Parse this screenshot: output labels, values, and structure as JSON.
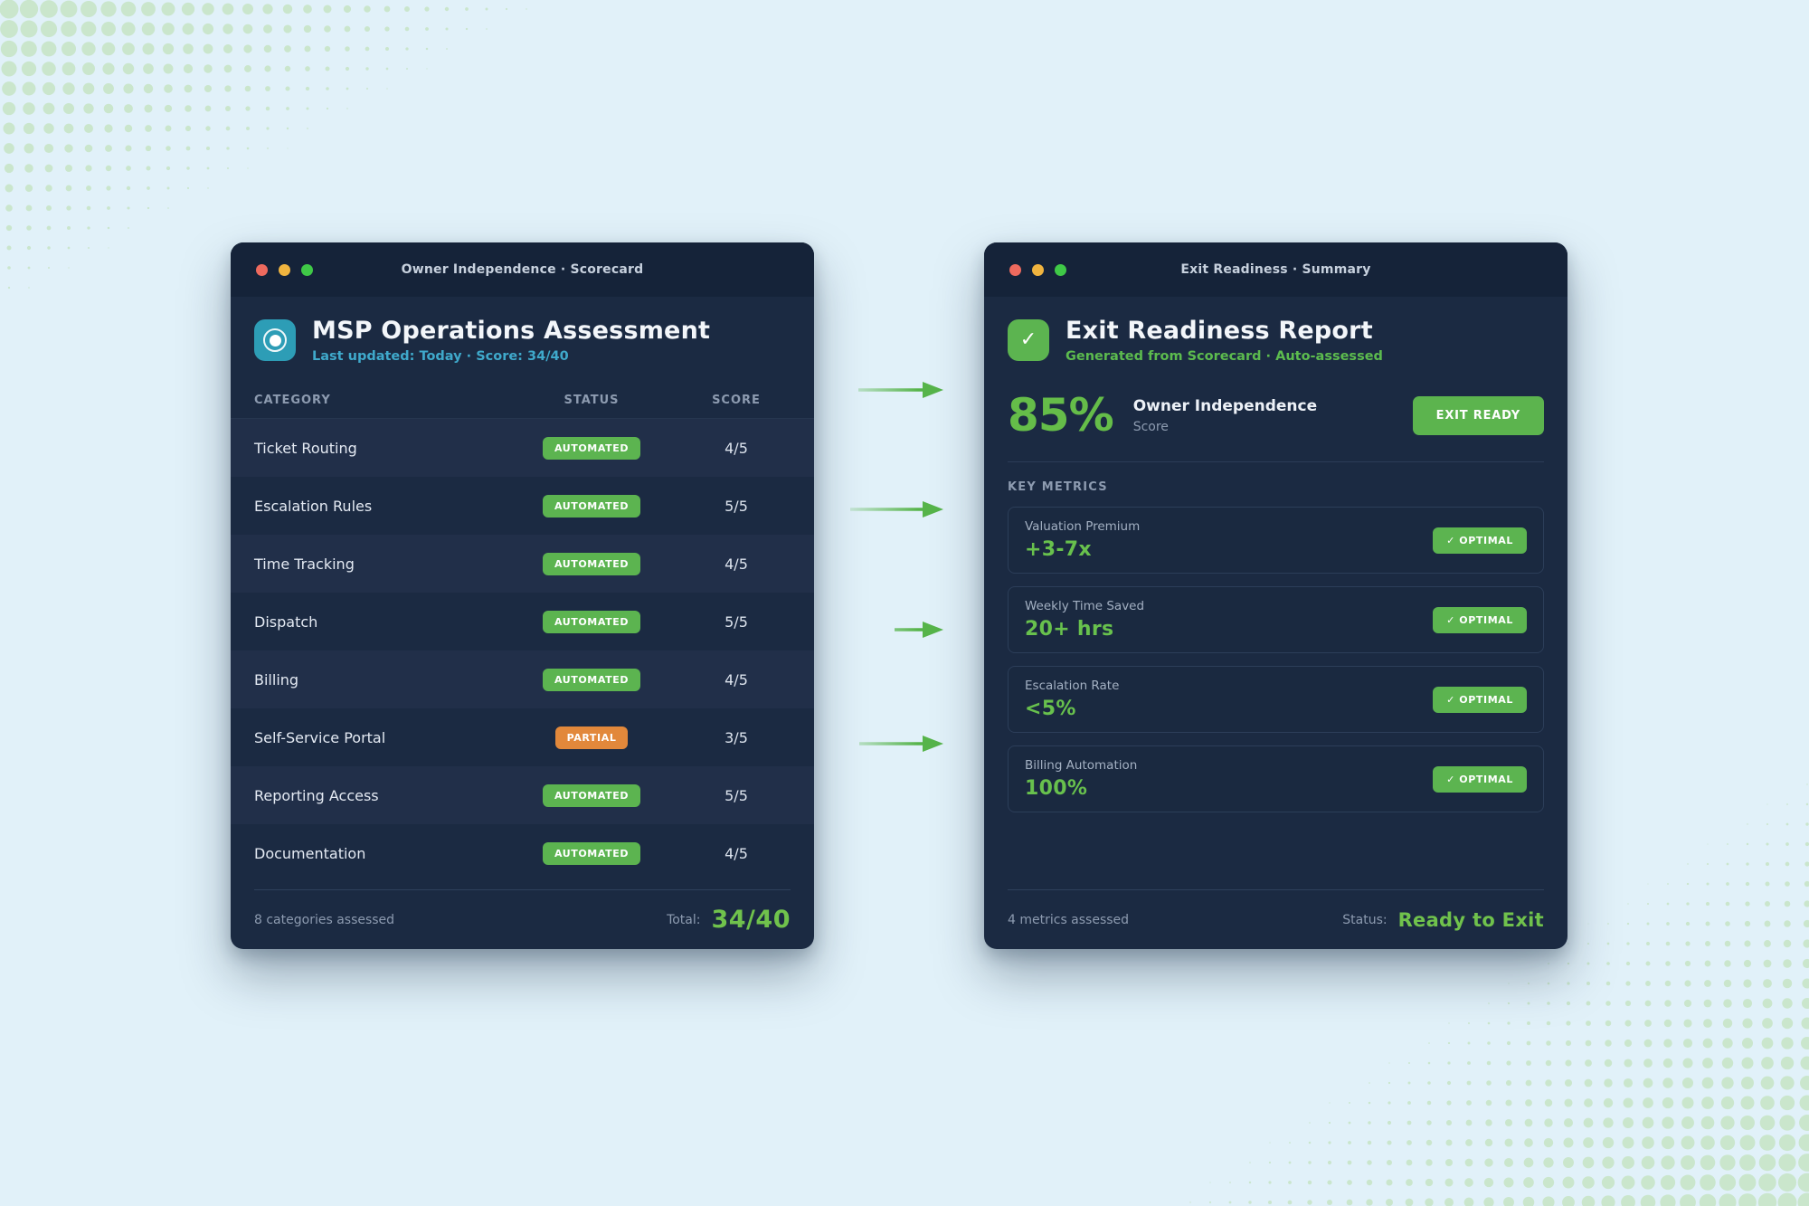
{
  "colors": {
    "page_bg": "#e1f1f9",
    "halftone_dot": "#cae6cc",
    "window_bg": "#1b2a42",
    "titlebar_bg": "#152339",
    "accent_green": "#5cb450",
    "accent_orange": "#e2883b",
    "accent_teal": "#2d9db6",
    "value_green": "#70c24c"
  },
  "left_window": {
    "titlebar": "Owner Independence · Scorecard",
    "app_icon": "target-icon",
    "title": "MSP Operations Assessment",
    "subtitle": "Last updated: Today · Score: 34/40",
    "columns": {
      "category": "CATEGORY",
      "status": "STATUS",
      "score": "SCORE"
    },
    "rows": [
      {
        "category": "Ticket Routing",
        "status": "AUTOMATED",
        "status_type": "automated",
        "score": "4/5"
      },
      {
        "category": "Escalation Rules",
        "status": "AUTOMATED",
        "status_type": "automated",
        "score": "5/5"
      },
      {
        "category": "Time Tracking",
        "status": "AUTOMATED",
        "status_type": "automated",
        "score": "4/5"
      },
      {
        "category": "Dispatch",
        "status": "AUTOMATED",
        "status_type": "automated",
        "score": "5/5"
      },
      {
        "category": "Billing",
        "status": "AUTOMATED",
        "status_type": "automated",
        "score": "4/5"
      },
      {
        "category": "Self-Service Portal",
        "status": "PARTIAL",
        "status_type": "partial",
        "score": "3/5"
      },
      {
        "category": "Reporting Access",
        "status": "AUTOMATED",
        "status_type": "automated",
        "score": "5/5"
      },
      {
        "category": "Documentation",
        "status": "AUTOMATED",
        "status_type": "automated",
        "score": "4/5"
      }
    ],
    "footer": {
      "left": "8 categories assessed",
      "total_label": "Total:",
      "total_value": "34/40"
    }
  },
  "right_window": {
    "titlebar": "Exit Readiness · Summary",
    "app_icon": "checkmark-icon",
    "check_glyph": "✓",
    "title": "Exit Readiness Report",
    "subtitle": "Generated from Scorecard · Auto-assessed",
    "score": {
      "value": "85%",
      "label": "Owner Independence",
      "sublabel": "Score",
      "button": "EXIT READY"
    },
    "section_title": "KEY METRICS",
    "metrics": [
      {
        "label": "Valuation Premium",
        "value": "+3-7x",
        "badge": "✓ OPTIMAL"
      },
      {
        "label": "Weekly Time Saved",
        "value": "20+ hrs",
        "badge": "✓ OPTIMAL"
      },
      {
        "label": "Escalation Rate",
        "value": "<5%",
        "badge": "✓ OPTIMAL"
      },
      {
        "label": "Billing Automation",
        "value": "100%",
        "badge": "✓ OPTIMAL"
      }
    ],
    "footer": {
      "left": "4 metrics assessed",
      "status_label": "Status:",
      "status_value": "Ready to Exit"
    }
  }
}
